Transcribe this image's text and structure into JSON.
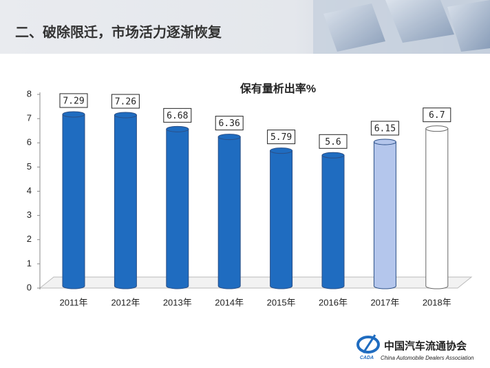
{
  "header": {
    "title": "二、破除限迁，市场活力逐渐恢复"
  },
  "chart_data": {
    "type": "bar",
    "title": "保有量析出率%",
    "categories": [
      "2011年",
      "2012年",
      "2013年",
      "2014年",
      "2015年",
      "2016年",
      "2017年",
      "2018年"
    ],
    "values": [
      7.29,
      7.26,
      6.68,
      6.36,
      5.79,
      5.6,
      6.15,
      6.7
    ],
    "colors": [
      "#1f6cc0",
      "#1f6cc0",
      "#1f6cc0",
      "#1f6cc0",
      "#1f6cc0",
      "#1f6cc0",
      "#b4c6ec",
      "#ffffff"
    ],
    "ylim": [
      0,
      8
    ],
    "yticks": [
      0,
      1,
      2,
      3,
      4,
      5,
      6,
      7,
      8
    ]
  },
  "logo": {
    "abbr": "CADA",
    "cn": "中国汽车流通协会",
    "en": "China Automobile Dealers Association"
  }
}
